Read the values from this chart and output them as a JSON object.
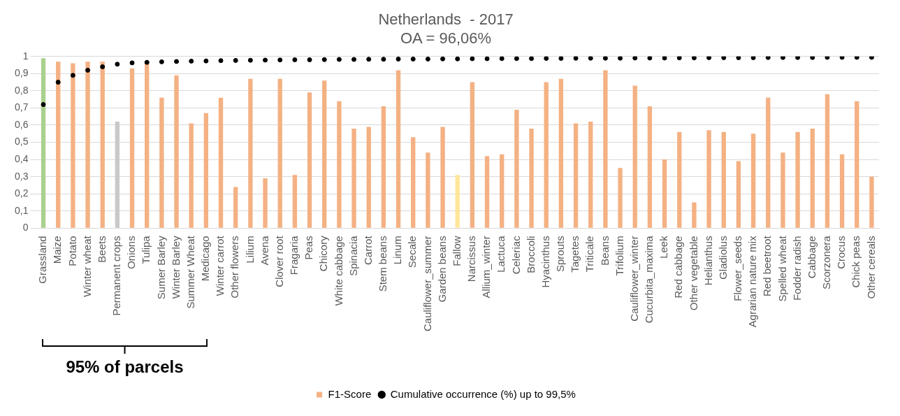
{
  "chart_data": {
    "type": "bar",
    "title": "Netherlands  - 2017",
    "subtitle": "OA = 96,06%",
    "categories": [
      "Grassland",
      "Maize",
      "Potato",
      "Winter wheat",
      "Beets",
      "Permanent crops",
      "Onions",
      "Tulipa",
      "Sumer Barley",
      "Winter Barley",
      "Summer Wheat",
      "Medicago",
      "Winter carrot",
      "Other flowers",
      "Lilium",
      "Avena",
      "Clover root",
      "Fragaria",
      "Peas",
      "Chicory",
      "White cabbage",
      "Spinacia",
      "Carrot",
      "Stem beans",
      "Linum",
      "Secale",
      "Cauliflower_summer",
      "Garden beans",
      "Fallow",
      "Narcissus",
      "Allium_winter",
      "Lactuca",
      "Celeriac",
      "Broccoli",
      "Hyacinthus",
      "Sprouts",
      "Tagetes",
      "Triticale",
      "Beans",
      "Trifolium",
      "Cauliflower_winter",
      "Cucurbita_maxima",
      "Leek",
      "Red cabbage",
      "Other vegetable",
      "Helianthus",
      "Gladiolus",
      "Flower_seeds",
      "Agrarian nature mix",
      "Red beetroot",
      "Spelled wheat",
      "Fodder radish",
      "Cabbage",
      "Scorzonera",
      "Crocus",
      "Chick peas",
      "Other cereals"
    ],
    "series": [
      {
        "name": "F1-Score",
        "color": "#f4b183",
        "colors": [
          "#a9d18e",
          "#f4b183",
          "#f4b183",
          "#f4b183",
          "#f4b183",
          "#c9c9c9",
          "#f4b183",
          "#f4b183",
          "#f4b183",
          "#f4b183",
          "#f4b183",
          "#f4b183",
          "#f4b183",
          "#f4b183",
          "#f4b183",
          "#f4b183",
          "#f4b183",
          "#f4b183",
          "#f4b183",
          "#f4b183",
          "#f4b183",
          "#f4b183",
          "#f4b183",
          "#f4b183",
          "#f4b183",
          "#f4b183",
          "#f4b183",
          "#f4b183",
          "#ffe699",
          "#f4b183",
          "#f4b183",
          "#f4b183",
          "#f4b183",
          "#f4b183",
          "#f4b183",
          "#f4b183",
          "#f4b183",
          "#f4b183",
          "#f4b183",
          "#f4b183",
          "#f4b183",
          "#f4b183",
          "#f4b183",
          "#f4b183",
          "#f4b183",
          "#f4b183",
          "#f4b183",
          "#f4b183",
          "#f4b183",
          "#f4b183",
          "#f4b183",
          "#f4b183",
          "#f4b183",
          "#f4b183",
          "#f4b183",
          "#f4b183",
          "#f4b183"
        ],
        "values": [
          0.99,
          0.97,
          0.96,
          0.97,
          0.97,
          0.62,
          0.93,
          0.97,
          0.76,
          0.89,
          0.61,
          0.67,
          0.76,
          0.24,
          0.87,
          0.29,
          0.87,
          0.31,
          0.79,
          0.86,
          0.74,
          0.58,
          0.59,
          0.71,
          0.92,
          0.53,
          0.44,
          0.59,
          0.31,
          0.85,
          0.42,
          0.43,
          0.69,
          0.58,
          0.85,
          0.87,
          0.61,
          0.62,
          0.92,
          0.35,
          0.83,
          0.71,
          0.4,
          0.56,
          0.15,
          0.57,
          0.56,
          0.39,
          0.55,
          0.76,
          0.44,
          0.56,
          0.58,
          0.78,
          0.43,
          0.74,
          0.3
        ]
      },
      {
        "name": "Cumulative occurrence (%) up to 99,5%",
        "type": "scatter",
        "color": "#000000",
        "values": [
          0.72,
          0.85,
          0.89,
          0.92,
          0.94,
          0.955,
          0.963,
          0.966,
          0.969,
          0.971,
          0.973,
          0.974,
          0.976,
          0.977,
          0.978,
          0.979,
          0.98,
          0.981,
          0.981,
          0.982,
          0.983,
          0.983,
          0.984,
          0.984,
          0.985,
          0.985,
          0.985,
          0.986,
          0.986,
          0.987,
          0.987,
          0.988,
          0.988,
          0.988,
          0.989,
          0.989,
          0.99,
          0.99,
          0.99,
          0.99,
          0.991,
          0.991,
          0.991,
          0.992,
          0.992,
          0.993,
          0.993,
          0.993,
          0.993,
          0.994,
          0.994,
          0.994,
          0.994,
          0.995,
          0.995,
          0.995,
          0.995
        ]
      }
    ],
    "ylim": [
      0,
      1
    ],
    "yticks": [
      0,
      {
        "value": 0.1,
        "label": "0,1"
      },
      {
        "value": 0.2,
        "label": "0,2"
      },
      {
        "value": 0.3,
        "label": "0,3"
      },
      {
        "value": 0.4,
        "label": "0,4"
      },
      {
        "value": 0.5,
        "label": "0,5"
      },
      {
        "value": 0.6,
        "label": "0,6"
      },
      {
        "value": 0.7,
        "label": "0,7"
      },
      {
        "value": 0.8,
        "label": "0,8"
      },
      {
        "value": 0.9,
        "label": "0,9"
      },
      1
    ],
    "grid": "y",
    "legend": "bottom",
    "marker": "circle",
    "annotations": [
      "95% of parcels"
    ]
  }
}
